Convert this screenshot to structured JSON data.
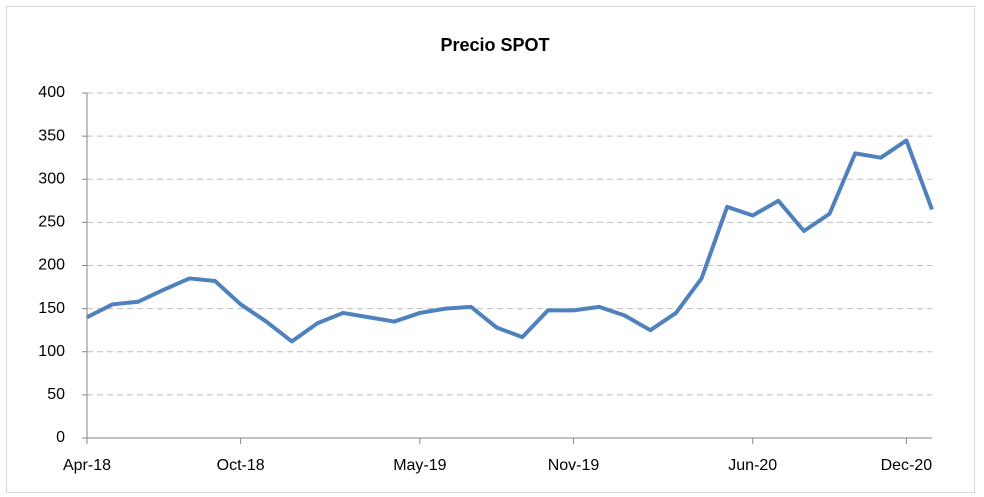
{
  "chart_data": {
    "type": "line",
    "title": "Precio SPOT",
    "x": [
      "Apr-18",
      "May-18",
      "Jun-18",
      "Jul-18",
      "Aug-18",
      "Sep-18",
      "Oct-18",
      "Nov-18",
      "Dec-18",
      "Jan-19",
      "Feb-19",
      "Mar-19",
      "Apr-19",
      "May-19",
      "Jun-19",
      "Jul-19",
      "Aug-19",
      "Sep-19",
      "Oct-19",
      "Nov-19",
      "Dec-19",
      "Jan-20",
      "Feb-20",
      "Mar-20",
      "Apr-20",
      "May-20",
      "Jun-20",
      "Jul-20",
      "Aug-20",
      "Sep-20",
      "Oct-20",
      "Nov-20",
      "Dec-20",
      "Jan-21"
    ],
    "series": [
      {
        "name": "Precio SPOT",
        "color": "#4f81bd",
        "values": [
          140,
          155,
          158,
          172,
          185,
          182,
          155,
          135,
          112,
          133,
          145,
          140,
          135,
          145,
          150,
          152,
          128,
          117,
          148,
          148,
          152,
          142,
          125,
          145,
          185,
          268,
          258,
          275,
          240,
          260,
          330,
          325,
          345,
          265
        ]
      }
    ],
    "ylim": [
      0,
      400
    ],
    "yticks": [
      0,
      50,
      100,
      150,
      200,
      250,
      300,
      350,
      400
    ],
    "xticks": [
      "Apr-18",
      "Oct-18",
      "May-19",
      "Nov-19",
      "Jun-20",
      "Dec-20"
    ],
    "grid": true
  }
}
